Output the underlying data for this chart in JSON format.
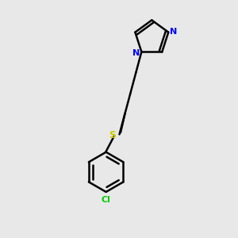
{
  "background_color": "#e8e8e8",
  "bond_color": "#000000",
  "N_color": "#0000ff",
  "S_color": "#cccc00",
  "Cl_color": "#00cc00",
  "line_width": 1.8,
  "dbo": 0.012,
  "figsize": [
    3.0,
    3.0
  ],
  "dpi": 100,
  "xlim": [
    0.1,
    0.9
  ],
  "ylim": [
    0.02,
    1.0
  ]
}
